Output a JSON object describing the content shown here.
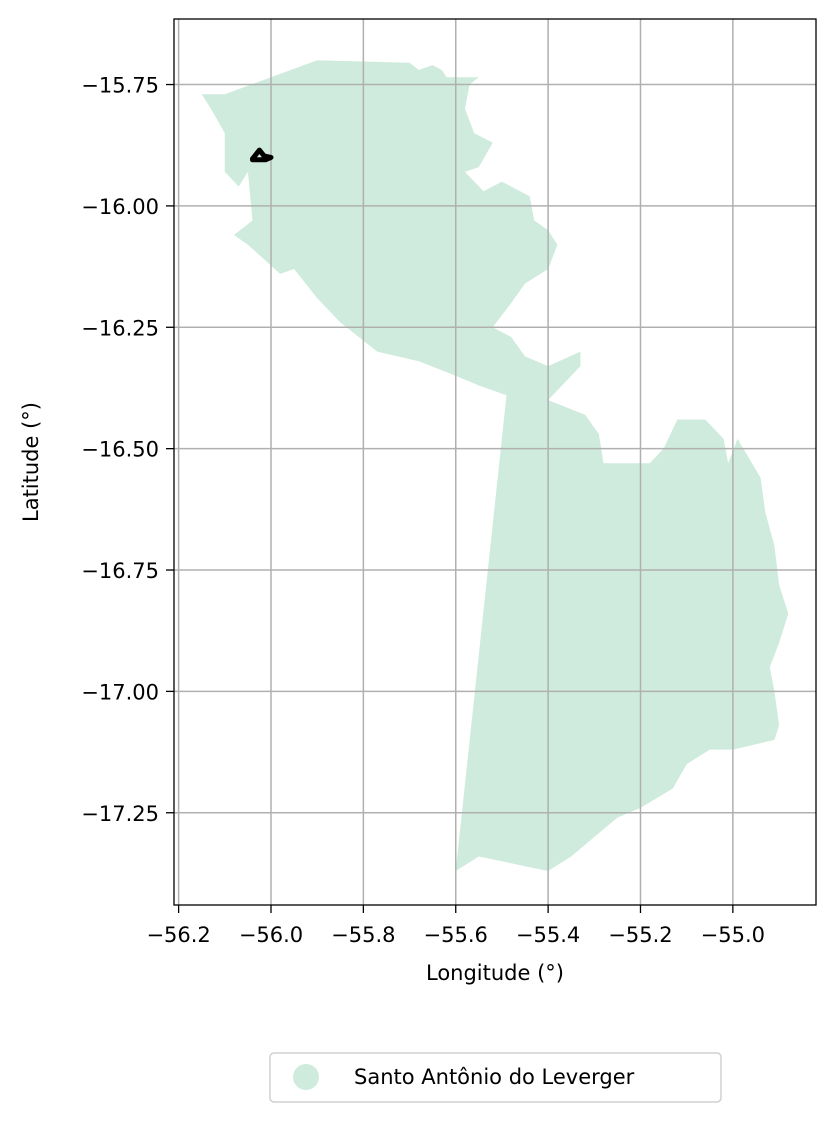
{
  "chart_data": {
    "type": "map",
    "xlabel": "Longitude (°)",
    "ylabel": "Latitude (°)",
    "xlim": [
      -56.21,
      -54.82
    ],
    "ylim": [
      -17.44,
      -15.615
    ],
    "grid": true,
    "x_ticks": [
      -56.2,
      -56.0,
      -55.8,
      -55.6,
      -55.4,
      -55.2,
      -55.0
    ],
    "x_tick_labels": [
      "−56.2",
      "−56.0",
      "−55.8",
      "−55.6",
      "−55.4",
      "−55.2",
      "−55.0"
    ],
    "y_ticks": [
      -15.75,
      -16.0,
      -16.25,
      -16.5,
      -16.75,
      -17.0,
      -17.25
    ],
    "y_tick_labels": [
      "−15.75",
      "−16.00",
      "−16.25",
      "−16.50",
      "−16.75",
      "−17.00",
      "−17.25"
    ],
    "region": {
      "name": "Santo Antônio do Leverger",
      "fill_color": "#cfebdd",
      "outline": [
        [
          -56.15,
          -15.77
        ],
        [
          -56.1,
          -15.77
        ],
        [
          -55.9,
          -15.7
        ],
        [
          -55.7,
          -15.705
        ],
        [
          -55.68,
          -15.72
        ],
        [
          -55.65,
          -15.71
        ],
        [
          -55.63,
          -15.72
        ],
        [
          -55.62,
          -15.735
        ],
        [
          -55.55,
          -15.735
        ],
        [
          -55.57,
          -15.75
        ],
        [
          -55.58,
          -15.8
        ],
        [
          -55.56,
          -15.85
        ],
        [
          -55.52,
          -15.87
        ],
        [
          -55.55,
          -15.92
        ],
        [
          -55.58,
          -15.93
        ],
        [
          -55.54,
          -15.97
        ],
        [
          -55.5,
          -15.95
        ],
        [
          -55.44,
          -15.98
        ],
        [
          -55.43,
          -16.03
        ],
        [
          -55.4,
          -16.05
        ],
        [
          -55.38,
          -16.08
        ],
        [
          -55.4,
          -16.13
        ],
        [
          -55.45,
          -16.16
        ],
        [
          -55.48,
          -16.2
        ],
        [
          -55.52,
          -16.25
        ],
        [
          -55.48,
          -16.27
        ],
        [
          -55.45,
          -16.31
        ],
        [
          -55.4,
          -16.33
        ],
        [
          -55.33,
          -16.3
        ],
        [
          -55.33,
          -16.33
        ],
        [
          -55.37,
          -16.37
        ],
        [
          -55.4,
          -16.4
        ],
        [
          -55.32,
          -16.43
        ],
        [
          -55.29,
          -16.47
        ],
        [
          -55.28,
          -16.53
        ],
        [
          -55.18,
          -16.53
        ],
        [
          -55.15,
          -16.5
        ],
        [
          -55.12,
          -16.44
        ],
        [
          -55.06,
          -16.44
        ],
        [
          -55.02,
          -16.48
        ],
        [
          -55.01,
          -16.53
        ],
        [
          -54.99,
          -16.48
        ],
        [
          -54.94,
          -16.56
        ],
        [
          -54.93,
          -16.63
        ],
        [
          -54.91,
          -16.7
        ],
        [
          -54.9,
          -16.78
        ],
        [
          -54.88,
          -16.84
        ],
        [
          -54.9,
          -16.9
        ],
        [
          -54.92,
          -16.95
        ],
        [
          -54.91,
          -17.0
        ],
        [
          -54.9,
          -17.07
        ],
        [
          -54.91,
          -17.1
        ],
        [
          -55.0,
          -17.12
        ],
        [
          -55.05,
          -17.12
        ],
        [
          -55.1,
          -17.15
        ],
        [
          -55.13,
          -17.2
        ],
        [
          -55.2,
          -17.24
        ],
        [
          -55.25,
          -17.26
        ],
        [
          -55.3,
          -17.3
        ],
        [
          -55.35,
          -17.34
        ],
        [
          -55.4,
          -17.37
        ],
        [
          -55.45,
          -17.36
        ],
        [
          -55.5,
          -17.35
        ],
        [
          -55.55,
          -17.34
        ],
        [
          -55.6,
          -17.37
        ],
        [
          -55.49,
          -16.39
        ],
        [
          -55.55,
          -16.37
        ],
        [
          -55.6,
          -16.35
        ],
        [
          -55.68,
          -16.32
        ],
        [
          -55.77,
          -16.3
        ],
        [
          -55.85,
          -16.24
        ],
        [
          -55.9,
          -16.19
        ],
        [
          -55.95,
          -16.13
        ],
        [
          -55.98,
          -16.14
        ],
        [
          -56.05,
          -16.08
        ],
        [
          -56.08,
          -16.06
        ],
        [
          -56.04,
          -16.03
        ],
        [
          -56.05,
          -15.93
        ],
        [
          -56.07,
          -15.96
        ],
        [
          -56.1,
          -15.93
        ],
        [
          -56.1,
          -15.85
        ],
        [
          -56.13,
          -15.8
        ],
        [
          -56.15,
          -15.77
        ]
      ]
    },
    "marker": {
      "outline": [
        [
          -56.025,
          -15.885
        ],
        [
          -56.015,
          -15.897
        ],
        [
          -56.0,
          -15.9
        ],
        [
          -56.012,
          -15.905
        ],
        [
          -56.04,
          -15.905
        ],
        [
          -56.04,
          -15.903
        ],
        [
          -56.025,
          -15.885
        ]
      ],
      "color": "#000000"
    },
    "legend": {
      "position": "bottom-center",
      "entries": [
        {
          "label": "Santo Antônio do Leverger",
          "color": "#cfebdd"
        }
      ]
    }
  }
}
